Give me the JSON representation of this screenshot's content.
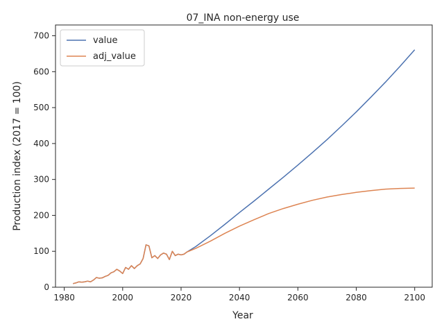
{
  "chart_data": {
    "type": "line",
    "title": "07_INA non-energy use",
    "xlabel": "Year",
    "ylabel": "Production index (2017 = 100)",
    "xlim": [
      1977,
      2106
    ],
    "ylim": [
      0,
      730
    ],
    "xticks": [
      1980,
      2000,
      2020,
      2040,
      2060,
      2080,
      2100
    ],
    "yticks": [
      0,
      100,
      200,
      300,
      400,
      500,
      600,
      700
    ],
    "grid": false,
    "legend_position": "top-left",
    "historical": {
      "x": [
        1983,
        1984,
        1985,
        1986,
        1987,
        1988,
        1989,
        1990,
        1991,
        1992,
        1993,
        1994,
        1995,
        1996,
        1997,
        1998,
        1999,
        2000,
        2001,
        2002,
        2003,
        2004,
        2005,
        2006,
        2007,
        2008,
        2009,
        2010,
        2011,
        2012,
        2013,
        2014,
        2015,
        2016,
        2017,
        2018,
        2019,
        2020,
        2021,
        2022
      ],
      "y": [
        10,
        12,
        15,
        14,
        15,
        17,
        15,
        20,
        27,
        25,
        26,
        30,
        33,
        40,
        43,
        50,
        45,
        38,
        55,
        50,
        60,
        52,
        60,
        65,
        80,
        118,
        115,
        82,
        88,
        80,
        90,
        95,
        92,
        77,
        100,
        88,
        92,
        90,
        92,
        98
      ]
    },
    "series": [
      {
        "name": "value",
        "color": "#4c72b0",
        "x": [
          2022,
          2025,
          2030,
          2035,
          2040,
          2045,
          2050,
          2055,
          2060,
          2065,
          2070,
          2075,
          2080,
          2085,
          2090,
          2095,
          2100
        ],
        "y": [
          98,
          113,
          143,
          175,
          208,
          240,
          273,
          306,
          340,
          375,
          411,
          449,
          488,
          529,
          571,
          615,
          661
        ]
      },
      {
        "name": "adj_value",
        "color": "#dd8452",
        "x": [
          2022,
          2025,
          2030,
          2035,
          2040,
          2045,
          2050,
          2055,
          2060,
          2065,
          2070,
          2075,
          2080,
          2085,
          2090,
          2095,
          2100
        ],
        "y": [
          98,
          108,
          128,
          150,
          170,
          188,
          205,
          219,
          231,
          242,
          251,
          258,
          264,
          269,
          273,
          275,
          276
        ]
      }
    ]
  }
}
